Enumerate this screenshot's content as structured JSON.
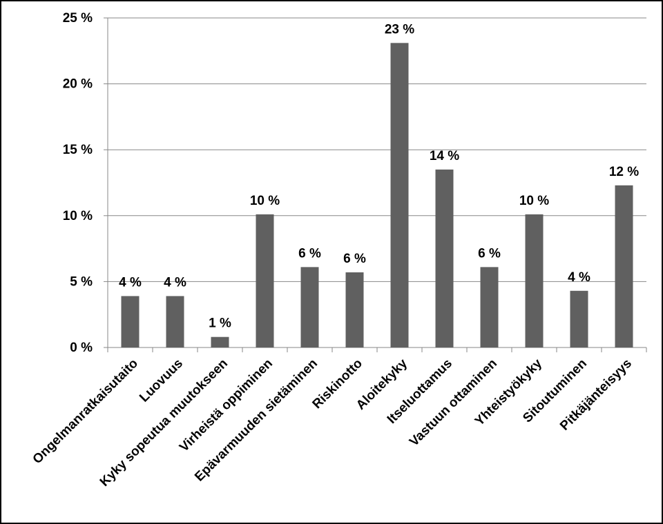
{
  "chart_data": {
    "type": "bar",
    "title": "",
    "xlabel": "",
    "ylabel": "",
    "ylim": [
      0,
      25
    ],
    "y_ticks": [
      0,
      5,
      10,
      15,
      20,
      25
    ],
    "y_tick_labels": [
      "0 %",
      "5 %",
      "10 %",
      "15 %",
      "20 %",
      "25 %"
    ],
    "grid": true,
    "legend": "none",
    "bar_color": "#606060",
    "categories": [
      "Ongelmanratkaisutaito",
      "Luovuus",
      "Kyky sopeutua muutokseen",
      "Virheistä oppiminen",
      "Epävarmuuden sietäminen",
      "Riskinotto",
      "Aloitekyky",
      "Itseluottamus",
      "Vastuun ottaminen",
      "Yhteistyökyky",
      "Sitoutuminen",
      "Pitkäjänteisyys"
    ],
    "values": [
      3.9,
      3.9,
      0.8,
      10.1,
      6.1,
      5.7,
      23.1,
      13.5,
      6.1,
      10.1,
      4.3,
      12.3
    ],
    "data_labels": [
      "4 %",
      "4 %",
      "1 %",
      "10 %",
      "6 %",
      "6 %",
      "23 %",
      "14 %",
      "6 %",
      "10 %",
      "4 %",
      "12 %"
    ]
  }
}
